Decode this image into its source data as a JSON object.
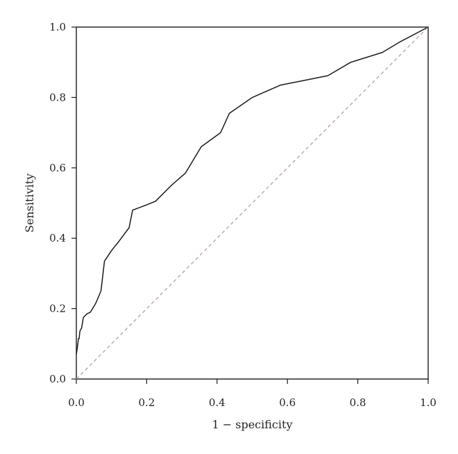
{
  "chart_data": {
    "type": "line",
    "title": "",
    "xlabel": "1 − specificity",
    "ylabel": "Sensitivity",
    "xlim": [
      0,
      1
    ],
    "ylim": [
      0,
      1
    ],
    "grid": false,
    "x_ticks": [
      "0.0",
      "0.2",
      "0.4",
      "0.6",
      "0.8",
      "1.0"
    ],
    "y_ticks": [
      "0.0",
      "0.2",
      "0.4",
      "0.6",
      "0.8",
      "1.0"
    ],
    "series": [
      {
        "color": "#1a1a1a",
        "style": "solid",
        "points": [
          [
            0.0,
            0.07
          ],
          [
            0.003,
            0.09
          ],
          [
            0.006,
            0.115
          ],
          [
            0.008,
            0.115
          ],
          [
            0.01,
            0.135
          ],
          [
            0.012,
            0.14
          ],
          [
            0.015,
            0.145
          ],
          [
            0.02,
            0.175
          ],
          [
            0.03,
            0.185
          ],
          [
            0.04,
            0.19
          ],
          [
            0.055,
            0.215
          ],
          [
            0.07,
            0.25
          ],
          [
            0.08,
            0.335
          ],
          [
            0.1,
            0.365
          ],
          [
            0.12,
            0.39
          ],
          [
            0.15,
            0.43
          ],
          [
            0.16,
            0.48
          ],
          [
            0.2,
            0.495
          ],
          [
            0.225,
            0.505
          ],
          [
            0.27,
            0.55
          ],
          [
            0.31,
            0.585
          ],
          [
            0.355,
            0.66
          ],
          [
            0.41,
            0.7
          ],
          [
            0.435,
            0.755
          ],
          [
            0.5,
            0.8
          ],
          [
            0.58,
            0.835
          ],
          [
            0.63,
            0.845
          ],
          [
            0.715,
            0.862
          ],
          [
            0.78,
            0.9
          ],
          [
            0.87,
            0.928
          ],
          [
            0.92,
            0.958
          ],
          [
            1.0,
            1.0
          ]
        ]
      },
      {
        "color": "#b3a09a",
        "style": "dashed",
        "points": [
          [
            0,
            0
          ],
          [
            1,
            1
          ]
        ]
      }
    ]
  }
}
